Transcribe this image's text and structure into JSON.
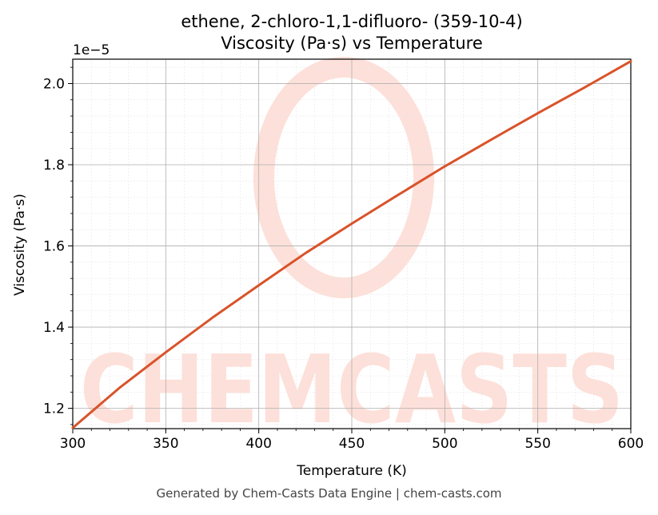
{
  "chart_data": {
    "type": "line",
    "title": "ethene, 2-chloro-1,1-difluoro- (359-10-4)",
    "subtitle": "Viscosity (Pa·s) vs Temperature",
    "xlabel": "Temperature (K)",
    "ylabel": "Viscosity (Pa·s)",
    "y_offset_label": "1e−5",
    "xlim": [
      300,
      600
    ],
    "ylim": [
      1.15,
      2.06
    ],
    "y_scale_factor": 1e-05,
    "x_ticks": [
      300,
      350,
      400,
      450,
      500,
      550,
      600
    ],
    "x_tick_labels": [
      "300",
      "350",
      "400",
      "450",
      "500",
      "550",
      "600"
    ],
    "y_ticks": [
      1.2,
      1.4,
      1.6,
      1.8,
      2.0
    ],
    "y_tick_labels": [
      "1.2",
      "1.4",
      "1.6",
      "1.8",
      "2.0"
    ],
    "grid": true,
    "series": [
      {
        "color": "#d9532a",
        "x": [
          300,
          325,
          350,
          375,
          400,
          425,
          450,
          475,
          500,
          525,
          550,
          575,
          600
        ],
        "y": [
          1.152,
          1.25,
          1.338,
          1.423,
          1.503,
          1.582,
          1.655,
          1.726,
          1.796,
          1.862,
          1.927,
          1.99,
          2.055
        ]
      }
    ]
  },
  "watermark": {
    "text": "CHEMCASTS",
    "color": "#fde0d9"
  },
  "footer": "Generated by Chem-Casts Data Engine | chem-casts.com"
}
